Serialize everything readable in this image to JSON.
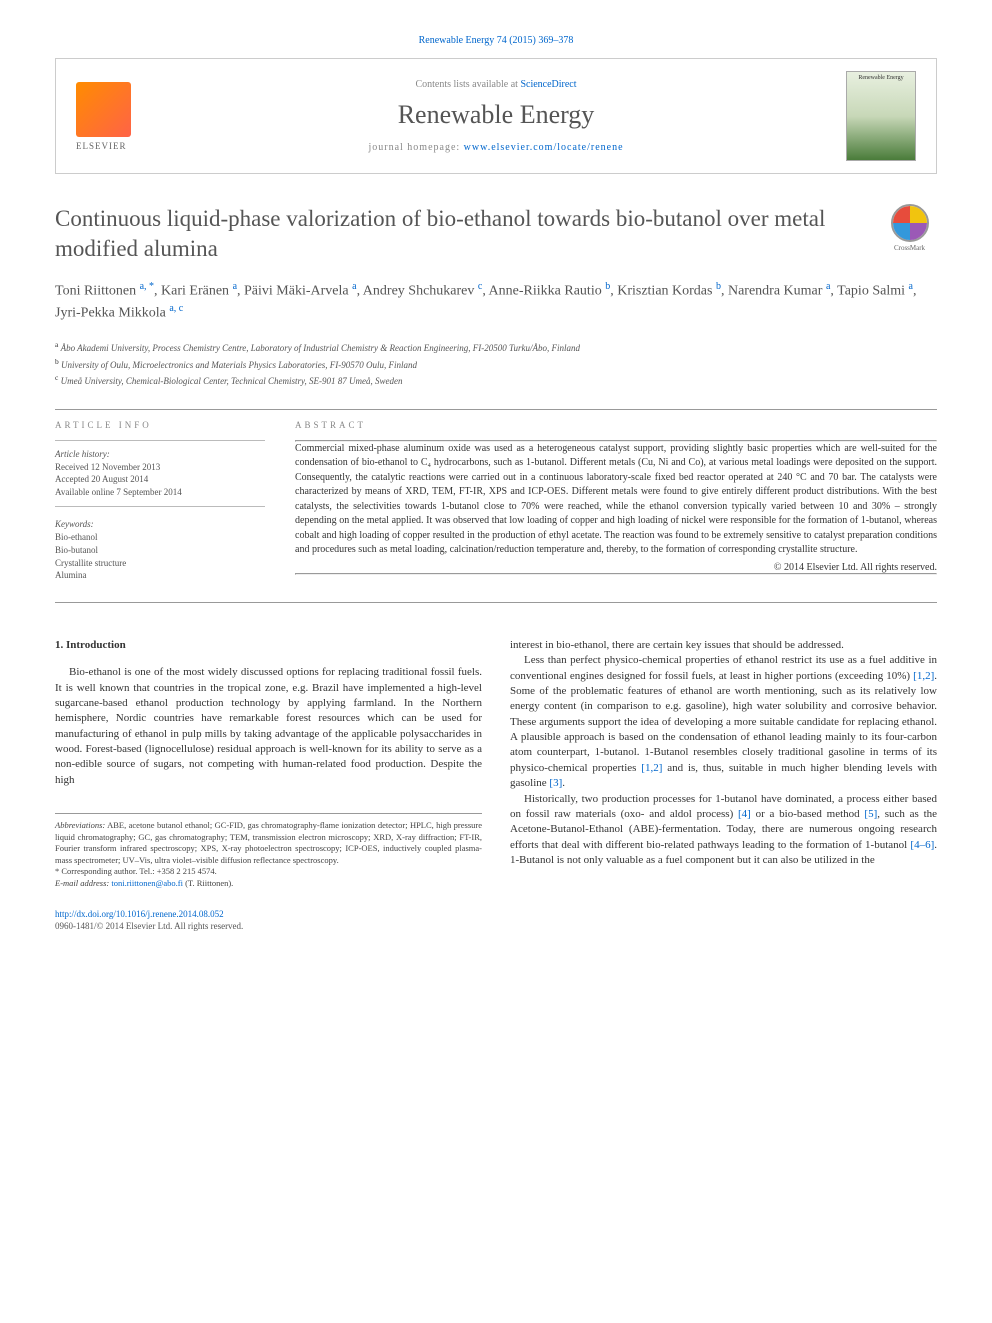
{
  "citation": "Renewable Energy 74 (2015) 369–378",
  "header": {
    "contents_prefix": "Contents lists available at ",
    "contents_link": "ScienceDirect",
    "journal": "Renewable Energy",
    "homepage_prefix": "journal homepage: ",
    "homepage_url": "www.elsevier.com/locate/renene",
    "publisher_label": "ELSEVIER",
    "cover_title": "Renewable Energy",
    "crossmark": "CrossMark"
  },
  "title": "Continuous liquid-phase valorization of bio-ethanol towards bio-butanol over metal modified alumina",
  "authors_html": "Toni Riittonen <sup>a, *</sup>, Kari Eränen <sup>a</sup>, Päivi Mäki-Arvela <sup>a</sup>, Andrey Shchukarev <sup>c</sup>, Anne-Riikka Rautio <sup>b</sup>, Krisztian Kordas <sup>b</sup>, Narendra Kumar <sup>a</sup>, Tapio Salmi <sup>a</sup>, Jyri-Pekka Mikkola <sup>a, c</sup>",
  "affiliations": [
    {
      "sup": "a",
      "text": "Åbo Akademi University, Process Chemistry Centre, Laboratory of Industrial Chemistry & Reaction Engineering, FI-20500 Turku/Åbo, Finland"
    },
    {
      "sup": "b",
      "text": "University of Oulu, Microelectronics and Materials Physics Laboratories, FI-90570 Oulu, Finland"
    },
    {
      "sup": "c",
      "text": "Umeå University, Chemical-Biological Center, Technical Chemistry, SE-901 87 Umeå, Sweden"
    }
  ],
  "info": {
    "header": "ARTICLE INFO",
    "history_label": "Article history:",
    "history": [
      "Received 12 November 2013",
      "Accepted 20 August 2014",
      "Available online 7 September 2014"
    ],
    "keywords_label": "Keywords:",
    "keywords": [
      "Bio-ethanol",
      "Bio-butanol",
      "Crystallite structure",
      "Alumina"
    ]
  },
  "abstract": {
    "header": "ABSTRACT",
    "text": "Commercial mixed-phase aluminum oxide was used as a heterogeneous catalyst support, providing slightly basic properties which are well-suited for the condensation of bio-ethanol to C₄ hydrocarbons, such as 1-butanol. Different metals (Cu, Ni and Co), at various metal loadings were deposited on the support. Consequently, the catalytic reactions were carried out in a continuous laboratory-scale fixed bed reactor operated at 240 °C and 70 bar. The catalysts were characterized by means of XRD, TEM, FT-IR, XPS and ICP-OES. Different metals were found to give entirely different product distributions. With the best catalysts, the selectivities towards 1-butanol close to 70% were reached, while the ethanol conversion typically varied between 10 and 30% – strongly depending on the metal applied. It was observed that low loading of copper and high loading of nickel were responsible for the formation of 1-butanol, whereas cobalt and high loading of copper resulted in the production of ethyl acetate. The reaction was found to be extremely sensitive to catalyst preparation conditions and procedures such as metal loading, calcination/reduction temperature and, thereby, to the formation of corresponding crystallite structure.",
    "copyright": "© 2014 Elsevier Ltd. All rights reserved."
  },
  "body": {
    "section_number": "1.",
    "section_title": "Introduction",
    "col1_p1": "Bio-ethanol is one of the most widely discussed options for replacing traditional fossil fuels. It is well known that countries in the tropical zone, e.g. Brazil have implemented a high-level sugarcane-based ethanol production technology by applying farmland. In the Northern hemisphere, Nordic countries have remarkable forest resources which can be used for manufacturing of ethanol in pulp mills by taking advantage of the applicable polysaccharides in wood. Forest-based (lignocellulose) residual approach is well-known for its ability to serve as a non-edible source of sugars, not competing with human-related food production. Despite the high",
    "col2_p1": "interest in bio-ethanol, there are certain key issues that should be addressed.",
    "col2_p2_pre": "Less than perfect physico-chemical properties of ethanol restrict its use as a fuel additive in conventional engines designed for fossil fuels, at least in higher portions (exceeding 10%) ",
    "col2_p2_ref1": "[1,2]",
    "col2_p2_mid": ". Some of the problematic features of ethanol are worth mentioning, such as its relatively low energy content (in comparison to e.g. gasoline), high water solubility and corrosive behavior. These arguments support the idea of developing a more suitable candidate for replacing ethanol. A plausible approach is based on the condensation of ethanol leading mainly to its four-carbon atom counterpart, 1-butanol. 1-Butanol resembles closely traditional gasoline in terms of its physico-chemical properties ",
    "col2_p2_ref2": "[1,2]",
    "col2_p2_mid2": " and is, thus, suitable in much higher blending levels with gasoline ",
    "col2_p2_ref3": "[3]",
    "col2_p2_end": ".",
    "col2_p3_pre": "Historically, two production processes for 1-butanol have dominated, a process either based on fossil raw materials (oxo- and aldol process) ",
    "col2_p3_ref1": "[4]",
    "col2_p3_mid1": " or a bio-based method ",
    "col2_p3_ref2": "[5]",
    "col2_p3_mid2": ", such as the Acetone-Butanol-Ethanol (ABE)-fermentation. Today, there are numerous ongoing research efforts that deal with different bio-related pathways leading to the formation of 1-butanol ",
    "col2_p3_ref3": "[4–6]",
    "col2_p3_end": ". 1-Butanol is not only valuable as a fuel component but it can also be utilized in the"
  },
  "footnotes": {
    "abbrev_label": "Abbreviations:",
    "abbrev_text": " ABE, acetone butanol ethanol; GC-FID, gas chromatography-flame ionization detector; HPLC, high pressure liquid chromatography; GC, gas chromatography; TEM, transmission electron microscopy; XRD, X-ray diffraction; FT-IR, Fourier transform infrared spectroscopy; XPS, X-ray photoelectron spectroscopy; ICP-OES, inductively coupled plasma-mass spectrometer; UV–Vis, ultra violet–visible diffusion reflectance spectroscopy.",
    "corr_label": "* Corresponding author. Tel.: +358 2 215 4574.",
    "email_label": "E-mail address: ",
    "email": "toni.riittonen@abo.fi",
    "email_name": " (T. Riittonen)."
  },
  "footer": {
    "doi": "http://dx.doi.org/10.1016/j.renene.2014.08.052",
    "issn_line": "0960-1481/© 2014 Elsevier Ltd. All rights reserved."
  },
  "colors": {
    "link": "#0066cc",
    "text": "#333333",
    "muted": "#888888",
    "border": "#cccccc"
  }
}
